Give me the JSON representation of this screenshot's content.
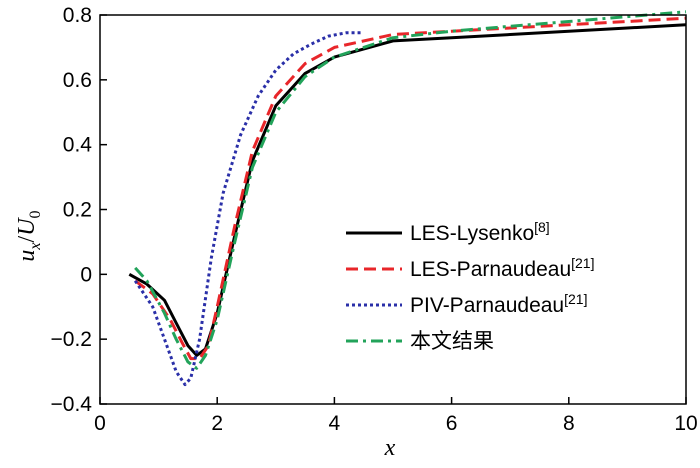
{
  "chart_data": {
    "type": "line",
    "title": "",
    "xlabel": "x",
    "ylabel_main": "u",
    "ylabel_sub": "x",
    "ylabel_sep": "/",
    "ylabel_den": "U",
    "ylabel_den_sub": "0",
    "xlim": [
      0,
      10
    ],
    "ylim": [
      -0.4,
      0.8
    ],
    "x_ticks": [
      0,
      2,
      4,
      6,
      8,
      10
    ],
    "x_tick_labels": [
      "0",
      "2",
      "4",
      "6",
      "8",
      "10"
    ],
    "y_ticks": [
      -0.4,
      -0.2,
      0,
      0.2,
      0.4,
      0.6,
      0.8
    ],
    "y_tick_labels": [
      "−0.4",
      "−0.2",
      "0",
      "0.2",
      "0.4",
      "0.6",
      "0.8"
    ],
    "grid": false,
    "legend_position": "center-right",
    "series": [
      {
        "name": "LES-Lysenko",
        "ref": "[8]",
        "color": "#000000",
        "dash": "solid",
        "x": [
          0.5,
          0.8,
          1.1,
          1.3,
          1.5,
          1.65,
          1.8,
          2.0,
          2.3,
          2.6,
          3.0,
          3.5,
          4.0,
          5.0,
          6.0,
          7.0,
          8.0,
          9.0,
          10.0
        ],
        "y": [
          0.0,
          -0.03,
          -0.08,
          -0.15,
          -0.22,
          -0.25,
          -0.23,
          -0.12,
          0.12,
          0.35,
          0.52,
          0.62,
          0.67,
          0.72,
          0.73,
          0.74,
          0.75,
          0.76,
          0.77
        ]
      },
      {
        "name": "LES-Parnaudeau",
        "ref": "[21]",
        "color": "#e8262a",
        "dash": "dashed",
        "x": [
          0.6,
          0.9,
          1.2,
          1.4,
          1.55,
          1.7,
          1.85,
          2.0,
          2.3,
          2.6,
          3.0,
          3.5,
          4.0,
          5.0,
          6.0,
          7.0,
          8.0,
          9.0,
          10.0
        ],
        "y": [
          -0.02,
          -0.06,
          -0.14,
          -0.21,
          -0.26,
          -0.26,
          -0.22,
          -0.1,
          0.15,
          0.38,
          0.55,
          0.65,
          0.7,
          0.74,
          0.75,
          0.76,
          0.77,
          0.78,
          0.79
        ]
      },
      {
        "name": "PIV-Parnaudeau",
        "ref": "[21]",
        "color": "#2a2fa8",
        "dash": "dotted",
        "x": [
          0.6,
          0.9,
          1.1,
          1.3,
          1.45,
          1.55,
          1.7,
          1.9,
          2.1,
          2.4,
          2.7,
          3.0,
          3.3,
          3.6,
          3.9,
          4.2,
          4.45
        ],
        "y": [
          -0.02,
          -0.1,
          -0.2,
          -0.3,
          -0.34,
          -0.32,
          -0.2,
          0.05,
          0.25,
          0.43,
          0.55,
          0.63,
          0.68,
          0.71,
          0.735,
          0.745,
          0.745
        ]
      },
      {
        "name": "本文结果",
        "ref": "",
        "color": "#22a35a",
        "dash": "dashdot",
        "x": [
          0.6,
          0.8,
          1.1,
          1.3,
          1.5,
          1.65,
          1.8,
          2.0,
          2.3,
          2.6,
          3.0,
          3.5,
          4.0,
          5.0,
          6.0,
          7.0,
          8.0,
          9.0,
          10.0
        ],
        "y": [
          0.02,
          -0.02,
          -0.12,
          -0.2,
          -0.27,
          -0.29,
          -0.25,
          -0.14,
          0.1,
          0.33,
          0.5,
          0.61,
          0.67,
          0.73,
          0.75,
          0.765,
          0.78,
          0.795,
          0.81
        ]
      }
    ]
  }
}
